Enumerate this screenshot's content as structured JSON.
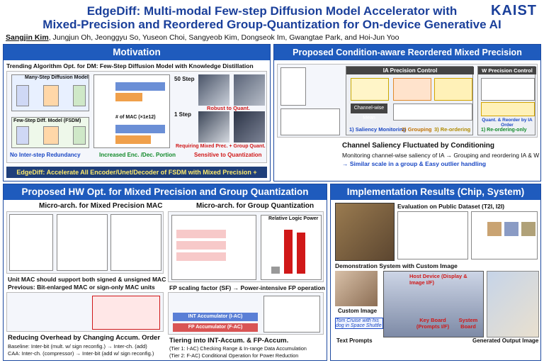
{
  "header": {
    "title_line1": "EdgeDiff: Multi-modal Few-step Diffusion Model Accelerator with",
    "title_line2": "Mixed-Precision and Reordered Group-Quantization for On-device Generative AI",
    "first_author": "Sangjin Kim",
    "other_authors": ", Jungjun Oh, Jeonggyu So, Yuseon Choi, Sangyeob Kim, Dongseok Im, Gwangtae Park, and Hoi-Jun Yoo",
    "logo": "KAIST"
  },
  "motivation": {
    "heading": "Motivation",
    "subtitle": "Trending Algorithm Opt. for DM: Few-Step Diffusion Model with Knowledge Distillation",
    "many_step": "Many-Step Diffusion Model",
    "few_step": "Few-Step Diff. Model (FSDM)",
    "mac_label": "# of MAC (×1e12)",
    "step50": "50 Step",
    "step1": "1 Step",
    "robust": "Robust to Quant.",
    "requiring": "Requiring Mixed Prec. + Group Quant.",
    "point1": "No Inter-step Redundancy",
    "point2": "Increased Enc. /Dec. Portion",
    "point3": "Sensitive to Quantization",
    "conclusion": "EdgeDiff: Accelerate All Encoder/Unet/Decoder of FSDM with Mixed Precision + Group Quant."
  },
  "condition": {
    "heading": "Proposed Condition-aware Reordered Mixed Precision",
    "ia_control": "IA Precision Control",
    "w_control": "W Precision Control",
    "step1": "1) Saliency Monitoring",
    "step2": "2) Grouping",
    "step3": "3) Re-ordering",
    "step_w": "1) Re-ordering-only",
    "channel_mean": "Channel-wise Mean",
    "quant_reorder": "Quant. & Reorder by IA Order",
    "saliency_title": "Channel Saliency Fluctuated by Conditioning",
    "saliency_text": "Monitoring channel-wise saliency of IA → Grouping and reordering IA & W",
    "saliency_result": "→ Similar scale in a group & Easy outlier handling"
  },
  "hw": {
    "heading": "Proposed HW Opt. for Mixed Precision and Group Quantization",
    "left_title": "Micro-arch. for Mixed Precision MAC",
    "right_title": "Micro-arch. for Group Quantization",
    "power_title": "Relative Logic Power",
    "unit_mac": "Unit MAC should support both signed & unsigned MAC",
    "previous": "Previous: Bit-enlarged MAC or sign-only MAC units",
    "fp_factor": "FP scaling factor (SF) → Power-intensive FP operation",
    "int_acc": "INT Accumulator (I-AC)",
    "fp_acc": "FP Accumulator (F-AC)",
    "reducing": "Reducing Overhead by Changing Accum. Order",
    "baseline": "Baseline: Inter-bit (mult. w/ sign reconfig.) → Inter-ch. (add)",
    "caa": "CAA: Inter-ch. (compressor) → Inter-bit (add w/ sign reconfig.)",
    "tiering": "Tiering into INT-Accum. & FP-Accum.",
    "tier1": "(Tier 1: I-AC) Checking Range & In-range Data Accumulation",
    "tier2": "(Tier 2: F-AC) Conditional Operation for Power Reduction"
  },
  "impl": {
    "heading": "Implementation Results (Chip, System)",
    "eval_title": "Evaluation on Public Dataset (T2I, I2I)",
    "demo_title": "Demonstration System with Custom Image",
    "host": "Host Device (Display & Image I/F)",
    "keyboard": "Key Board (Prompts I/F)",
    "system_board": "System Board",
    "custom_image": "Custom Image",
    "prompt_text": "Tom Cruise with his dog in Space Shuttle",
    "text_prompts": "Text Prompts",
    "generated": "Generated Output Image"
  },
  "colors": {
    "accent": "#1f5bbd",
    "title": "#1a3f9a",
    "red": "#d01818"
  }
}
